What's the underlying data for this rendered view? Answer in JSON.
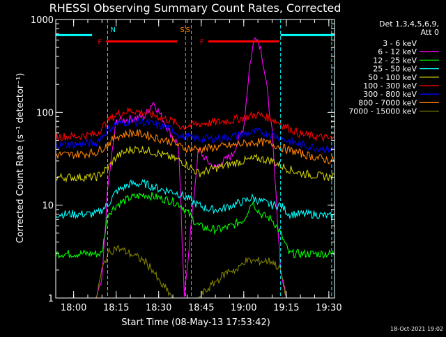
{
  "chart_data": {
    "type": "line",
    "title": "RHESSI Observing Summary Count Rates, Corrected",
    "xlabel": "Start Time (08-May-13 17:53:42)",
    "ylabel": "Corrected Count Rate (s⁻¹ detector⁻¹)",
    "yscale": "log",
    "ylim": [
      1,
      1000
    ],
    "xlim": [
      "17:53:42",
      "19:32:00"
    ],
    "x_ticks": [
      "18:00",
      "18:15",
      "18:30",
      "18:45",
      "19:00",
      "19:15",
      "19:30"
    ],
    "y_ticks": [
      "1",
      "10",
      "100",
      "1000"
    ],
    "grid": false,
    "footer": "18-Oct-2021 19:02",
    "legend": {
      "placement": "right",
      "header": [
        "Det 1,3,4,5,6,9,",
        "Att 0"
      ],
      "entries": [
        {
          "label": "3 - 6 keV",
          "color": "#000000"
        },
        {
          "label": "6 - 12 keV",
          "color": "#ff00ff"
        },
        {
          "label": "12 - 25 keV",
          "color": "#00ff00"
        },
        {
          "label": "25 - 50 keV",
          "color": "#00ffff"
        },
        {
          "label": "50 - 100 keV",
          "color": "#cccc00"
        },
        {
          "label": "100 - 300 keV",
          "color": "#ff0000"
        },
        {
          "label": "300 - 800 keV",
          "color": "#0000ff"
        },
        {
          "label": "800 - 7000 keV",
          "color": "#ff8000"
        },
        {
          "label": "7000 - 15000 keV",
          "color": "#808000"
        }
      ]
    },
    "flags": [
      {
        "label": "F",
        "color": "#ff0000",
        "start": "18:11:30",
        "end": "18:36:30",
        "level": 580
      },
      {
        "label": "F",
        "color": "#ff0000",
        "start": "18:47:30",
        "end": "19:12:30",
        "level": 580
      },
      {
        "label": "N",
        "color": "#00ffff",
        "start": "17:53:42",
        "end": "18:06:30",
        "level": 680
      },
      {
        "label": "N",
        "color": "#00ffff",
        "start": "19:13:00",
        "end": "19:32:00",
        "level": 680
      }
    ],
    "markers": [
      {
        "label": "N",
        "color": "#00ffff",
        "time": "18:12:00"
      },
      {
        "label": "S",
        "color": "#ff8000",
        "time": "18:39:30"
      },
      {
        "label": "S",
        "color": "#ff8000",
        "time": "18:41:30"
      },
      {
        "label": "",
        "color": "#00ffff",
        "time": "19:13:00"
      },
      {
        "label": "",
        "color": "#00ffff",
        "time": "19:31:00"
      }
    ],
    "series": [
      {
        "name": "3 - 6 keV",
        "color": "#000000",
        "x": [
          "18:00",
          "18:05",
          "18:08",
          "18:11",
          "18:12",
          "18:15",
          "18:20",
          "18:25",
          "18:28",
          "18:31",
          "18:34",
          "18:37",
          "18:39",
          "18:44",
          "18:47",
          "18:50",
          "18:53",
          "18:56",
          "19:00",
          "19:02",
          "19:04",
          "19:06",
          "19:08",
          "19:10",
          "19:13",
          "19:15",
          "19:20",
          "19:25",
          "19:31"
        ],
        "values": [
          1,
          1,
          1,
          1,
          30,
          85,
          95,
          110,
          140,
          110,
          80,
          60,
          1,
          60,
          40,
          35,
          40,
          45,
          80,
          200,
          400,
          300,
          150,
          60,
          3,
          1,
          1,
          1,
          1
        ]
      },
      {
        "name": "6 - 12 keV",
        "color": "#ff00ff",
        "x": [
          "18:00",
          "18:05",
          "18:08",
          "18:10",
          "18:12",
          "18:15",
          "18:20",
          "18:25",
          "18:28",
          "18:31",
          "18:34",
          "18:37",
          "18:39",
          "18:44",
          "18:47",
          "18:50",
          "18:53",
          "18:56",
          "19:00",
          "19:02",
          "19:04",
          "19:06",
          "19:08",
          "19:10",
          "19:13",
          "19:15",
          "19:20",
          "19:25",
          "19:31"
        ],
        "values": [
          1,
          1,
          1,
          1.5,
          15,
          80,
          85,
          90,
          130,
          90,
          60,
          45,
          1,
          40,
          30,
          25,
          30,
          35,
          70,
          300,
          700,
          500,
          200,
          60,
          2,
          1,
          1,
          1,
          1
        ]
      },
      {
        "name": "12 - 25 keV",
        "color": "#00ff00",
        "x": [
          "18:00",
          "18:08",
          "18:10",
          "18:12",
          "18:15",
          "18:20",
          "18:25",
          "18:30",
          "18:35",
          "18:38",
          "18:44",
          "18:48",
          "18:52",
          "18:56",
          "19:00",
          "19:03",
          "19:06",
          "19:10",
          "19:13",
          "19:16",
          "19:20",
          "19:25",
          "19:31"
        ],
        "values": [
          3,
          3,
          3,
          8,
          10,
          12,
          13,
          12,
          11,
          10,
          6,
          5.5,
          5.5,
          6,
          7,
          11,
          8,
          7,
          5,
          3,
          3,
          3,
          3
        ]
      },
      {
        "name": "25 - 50 keV",
        "color": "#00ffff",
        "x": [
          "18:00",
          "18:08",
          "18:12",
          "18:15",
          "18:20",
          "18:25",
          "18:30",
          "18:35",
          "18:38",
          "18:44",
          "18:48",
          "18:52",
          "18:56",
          "19:00",
          "19:03",
          "19:06",
          "19:10",
          "19:13",
          "19:16",
          "19:20",
          "19:25",
          "19:31"
        ],
        "values": [
          8,
          8,
          10,
          14,
          17,
          17,
          15,
          14,
          13,
          10,
          9,
          9,
          10,
          11,
          12,
          11,
          10,
          10,
          8,
          8,
          8,
          7.5
        ]
      },
      {
        "name": "50 - 100 keV",
        "color": "#cccc00",
        "x": [
          "18:00",
          "18:08",
          "18:12",
          "18:15",
          "18:20",
          "18:25",
          "18:30",
          "18:35",
          "18:38",
          "18:44",
          "18:50",
          "18:56",
          "19:00",
          "19:05",
          "19:10",
          "19:15",
          "19:20",
          "19:25",
          "19:31"
        ],
        "values": [
          20,
          20,
          25,
          33,
          40,
          40,
          36,
          32,
          30,
          22,
          25,
          28,
          30,
          32,
          30,
          25,
          22,
          21,
          20
        ]
      },
      {
        "name": "100 - 300 keV",
        "color": "#ff0000",
        "x": [
          "18:00",
          "18:08",
          "18:12",
          "18:15",
          "18:20",
          "18:25",
          "18:30",
          "18:35",
          "18:38",
          "18:44",
          "18:50",
          "18:56",
          "19:00",
          "19:05",
          "19:10",
          "19:15",
          "19:20",
          "19:25",
          "19:31"
        ],
        "values": [
          55,
          58,
          80,
          95,
          105,
          100,
          90,
          80,
          70,
          75,
          78,
          82,
          88,
          95,
          85,
          70,
          58,
          55,
          52
        ]
      },
      {
        "name": "300 - 800 keV",
        "color": "#0000ff",
        "x": [
          "18:00",
          "18:08",
          "18:12",
          "18:15",
          "18:20",
          "18:25",
          "18:30",
          "18:35",
          "18:38",
          "18:44",
          "18:50",
          "18:56",
          "19:00",
          "19:05",
          "19:10",
          "19:15",
          "19:20",
          "19:25",
          "19:31"
        ],
        "values": [
          45,
          47,
          65,
          75,
          80,
          78,
          72,
          65,
          55,
          52,
          52,
          55,
          58,
          62,
          58,
          50,
          45,
          42,
          40
        ]
      },
      {
        "name": "800 - 7000 keV",
        "color": "#ff8000",
        "x": [
          "18:00",
          "18:08",
          "18:12",
          "18:15",
          "18:20",
          "18:25",
          "18:30",
          "18:35",
          "18:38",
          "18:44",
          "18:50",
          "18:56",
          "19:00",
          "19:05",
          "19:10",
          "19:15",
          "19:20",
          "19:25",
          "19:31"
        ],
        "values": [
          35,
          37,
          45,
          55,
          60,
          58,
          52,
          48,
          42,
          40,
          42,
          44,
          46,
          48,
          46,
          40,
          36,
          33,
          30
        ]
      },
      {
        "name": "7000 - 15000 keV",
        "color": "#808000",
        "x": [
          "18:00",
          "18:08",
          "18:10",
          "18:12",
          "18:15",
          "18:20",
          "18:25",
          "18:28",
          "18:30",
          "18:33",
          "18:35",
          "18:38",
          "18:44",
          "18:50",
          "18:55",
          "18:58",
          "19:00",
          "19:05",
          "19:10",
          "19:13",
          "19:15",
          "19:20",
          "19:25",
          "19:31"
        ],
        "values": [
          1,
          1,
          2,
          3,
          3.5,
          3,
          2.5,
          2,
          1.5,
          1.2,
          1,
          1,
          1,
          1.5,
          2,
          2,
          2.5,
          2.5,
          2.5,
          2,
          1,
          1,
          1,
          1
        ]
      }
    ]
  }
}
